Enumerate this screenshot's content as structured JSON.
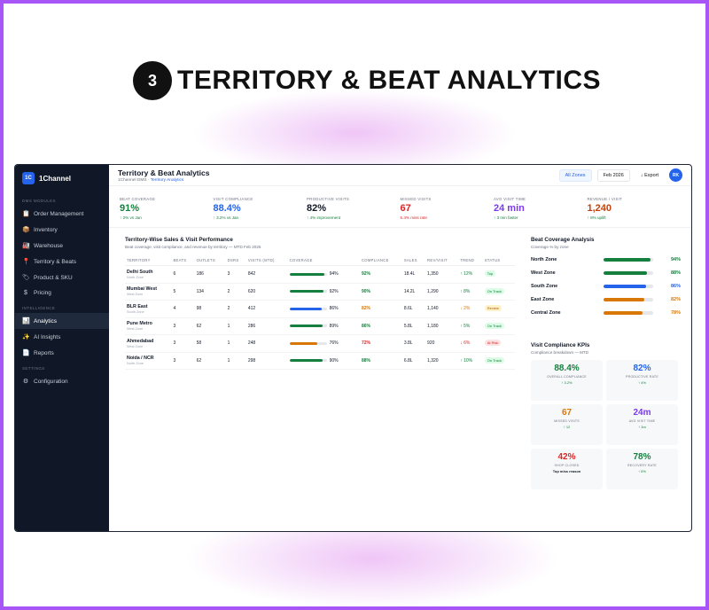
{
  "hero": {
    "number": "3",
    "title": "TERRITORY & BEAT ANALYTICS"
  },
  "brand": {
    "logo": "1C",
    "name": "1Channel"
  },
  "sidebar": {
    "sections": [
      {
        "label": "DMS MODULES",
        "items": [
          {
            "label": "Order Management",
            "icon": "clipboard-icon"
          },
          {
            "label": "Inventory",
            "icon": "box-icon"
          },
          {
            "label": "Warehouse",
            "icon": "warehouse-icon"
          },
          {
            "label": "Territory & Beats",
            "icon": "pin-icon"
          },
          {
            "label": "Product & SKU",
            "icon": "tag-icon"
          },
          {
            "label": "Pricing",
            "icon": "dollar-icon"
          }
        ]
      },
      {
        "label": "INTELLIGENCE",
        "items": [
          {
            "label": "Analytics",
            "icon": "chart-icon",
            "active": true
          },
          {
            "label": "AI Insights",
            "icon": "sparkle-icon"
          },
          {
            "label": "Reports",
            "icon": "doc-icon"
          }
        ]
      },
      {
        "label": "SETTINGS",
        "items": [
          {
            "label": "Configuration",
            "icon": "gear-icon"
          }
        ]
      }
    ]
  },
  "topbar": {
    "title": "Territory & Beat Analytics",
    "crumb_root": "1Channel DMS · ",
    "crumb_current": "Territory Analytics",
    "zone_filter": "All Zones",
    "period": "Feb 2026",
    "export": "↓ Export",
    "avatar": "RK"
  },
  "kpis": [
    {
      "label": "BEAT COVERAGE",
      "value": "91%",
      "delta": "↑ 2% vs Jan",
      "color": "#15803d",
      "delta_color": "#15803d"
    },
    {
      "label": "VISIT COMPLIANCE",
      "value": "88.4%",
      "delta": "↑ 3.2% vs Jan",
      "color": "#2563eb",
      "delta_color": "#15803d"
    },
    {
      "label": "PRODUCTIVE VISITS",
      "value": "82%",
      "delta": "↑ 4% improvement",
      "color": "#111827",
      "delta_color": "#15803d"
    },
    {
      "label": "MISSED VISITS",
      "value": "67",
      "delta": "5.4% miss rate",
      "color": "#dc2626",
      "delta_color": "#dc2626"
    },
    {
      "label": "AVG VISIT TIME",
      "value": "24 min",
      "delta": "↑ 3 min faster",
      "color": "#7c3aed",
      "delta_color": "#15803d"
    },
    {
      "label": "REVENUE / VISIT",
      "value": "1,240",
      "delta": "↑ 8% uplift",
      "color": "#c2410c",
      "delta_color": "#15803d"
    }
  ],
  "table": {
    "title": "Territory-Wise Sales & Visit Performance",
    "subtitle": "Beat coverage, visit compliance, and revenue by territory — MTD Feb 2026",
    "headers": [
      "TERRITORY",
      "BEATS",
      "OUTLETS",
      "DSRS",
      "VISITS (MTD)",
      "COVERAGE",
      "COMPLIANCE",
      "SALES",
      "REV/VISIT",
      "TREND",
      "STATUS"
    ],
    "rows": [
      {
        "name": "Delhi South",
        "zone": "North Zone",
        "beats": "6",
        "outlets": "186",
        "dsrs": "3",
        "visits": "842",
        "coverage": 94,
        "coverage_label": "94%",
        "cov_color": "#15803d",
        "compliance": "92%",
        "comp_color": "#15803d",
        "sales": "18.4L",
        "rev": "1,350",
        "trend": "↑ 12%",
        "trend_color": "#15803d",
        "status": "Top",
        "status_bg": "#dcfce7",
        "status_fg": "#15803d"
      },
      {
        "name": "Mumbai West",
        "zone": "West Zone",
        "beats": "5",
        "outlets": "134",
        "dsrs": "2",
        "visits": "620",
        "coverage": 92,
        "coverage_label": "92%",
        "cov_color": "#15803d",
        "compliance": "90%",
        "comp_color": "#15803d",
        "sales": "14.2L",
        "rev": "1,290",
        "trend": "↑ 8%",
        "trend_color": "#15803d",
        "status": "On Track",
        "status_bg": "#dcfce7",
        "status_fg": "#15803d"
      },
      {
        "name": "BLR East",
        "zone": "South Zone",
        "beats": "4",
        "outlets": "98",
        "dsrs": "2",
        "visits": "412",
        "coverage": 86,
        "coverage_label": "86%",
        "cov_color": "#2563eb",
        "compliance": "82%",
        "comp_color": "#d97706",
        "sales": "8.6L",
        "rev": "1,140",
        "trend": "↓ 2%",
        "trend_color": "#d97706",
        "status": "Review",
        "status_bg": "#fef3c7",
        "status_fg": "#b45309"
      },
      {
        "name": "Pune Metro",
        "zone": "West Zone",
        "beats": "3",
        "outlets": "62",
        "dsrs": "1",
        "visits": "286",
        "coverage": 89,
        "coverage_label": "89%",
        "cov_color": "#15803d",
        "compliance": "86%",
        "comp_color": "#15803d",
        "sales": "5.8L",
        "rev": "1,180",
        "trend": "↑ 5%",
        "trend_color": "#15803d",
        "status": "On Track",
        "status_bg": "#dcfce7",
        "status_fg": "#15803d"
      },
      {
        "name": "Ahmedabad",
        "zone": "West Zone",
        "beats": "3",
        "outlets": "58",
        "dsrs": "1",
        "visits": "248",
        "coverage": 76,
        "coverage_label": "76%",
        "cov_color": "#d97706",
        "compliance": "72%",
        "comp_color": "#dc2626",
        "sales": "3.8L",
        "rev": "920",
        "trend": "↓ 6%",
        "trend_color": "#dc2626",
        "status": "At Risk",
        "status_bg": "#fee2e2",
        "status_fg": "#dc2626"
      },
      {
        "name": "Noida / NCR",
        "zone": "North Zone",
        "beats": "3",
        "outlets": "62",
        "dsrs": "1",
        "visits": "298",
        "coverage": 90,
        "coverage_label": "90%",
        "cov_color": "#15803d",
        "compliance": "88%",
        "comp_color": "#15803d",
        "sales": "6.8L",
        "rev": "1,320",
        "trend": "↑ 10%",
        "trend_color": "#15803d",
        "status": "On Track",
        "status_bg": "#dcfce7",
        "status_fg": "#15803d"
      }
    ]
  },
  "coverage": {
    "title": "Beat Coverage Analysis",
    "subtitle": "Coverage % by zone",
    "zones": [
      {
        "name": "North Zone",
        "pct": 94,
        "label": "94%",
        "color": "#15803d"
      },
      {
        "name": "West Zone",
        "pct": 88,
        "label": "88%",
        "color": "#15803d"
      },
      {
        "name": "South Zone",
        "pct": 86,
        "label": "86%",
        "color": "#2563eb"
      },
      {
        "name": "East Zone",
        "pct": 82,
        "label": "82%",
        "color": "#d97706"
      },
      {
        "name": "Central Zone",
        "pct": 78,
        "label": "78%",
        "color": "#d97706"
      }
    ]
  },
  "compliance": {
    "title": "Visit Compliance KPIs",
    "subtitle": "Compliance breakdown — MTD",
    "cards": [
      {
        "value": "88.4%",
        "label": "OVERALL COMPLIANCE",
        "sub": "↑ 3.2%",
        "color": "#15803d",
        "sub_color": "#15803d"
      },
      {
        "value": "82%",
        "label": "PRODUCTIVE RATE",
        "sub": "↑ 4%",
        "color": "#2563eb",
        "sub_color": "#15803d"
      },
      {
        "value": "67",
        "label": "MISSED VISITS",
        "sub": "↑ 12",
        "color": "#d97706",
        "sub_color": "#15803d"
      },
      {
        "value": "24m",
        "label": "AVG VISIT TIME",
        "sub": "↑ 3m",
        "color": "#7c3aed",
        "sub_color": "#15803d"
      },
      {
        "value": "42%",
        "label": "SHOP CLOSED",
        "sub": "Top miss reason",
        "color": "#dc2626",
        "sub_color": "#111827"
      },
      {
        "value": "78%",
        "label": "RECOVERY RATE",
        "sub": "↑ 5%",
        "color": "#15803d",
        "sub_color": "#15803d"
      }
    ]
  }
}
